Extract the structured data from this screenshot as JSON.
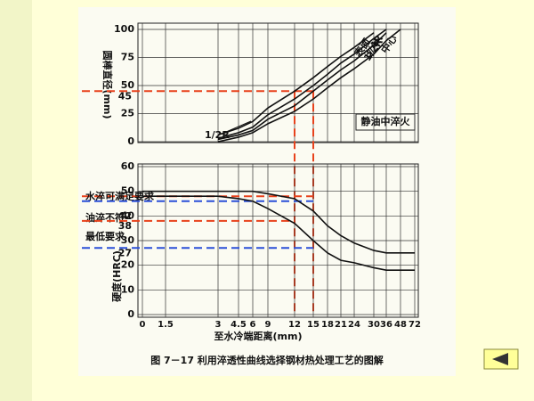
{
  "chart_data": [
    {
      "type": "line",
      "y_label": "圆棒直径(mm)",
      "annotation": "静油中淬火",
      "x": [
        3,
        4.5,
        6,
        9,
        12,
        15,
        18,
        21,
        24,
        30,
        36,
        48
      ],
      "series": [
        {
          "name": "表面",
          "color": "#111111",
          "values": [
            6,
            12,
            18,
            30,
            45,
            57,
            67,
            76,
            84,
            97,
            null,
            null
          ]
        },
        {
          "name": "3/4R",
          "color": "#111111",
          "values": [
            3,
            8,
            13,
            24,
            38,
            50,
            60,
            70,
            78,
            92,
            100,
            null
          ]
        },
        {
          "name": "1/2R",
          "color": "#111111",
          "values": [
            2,
            6,
            10,
            20,
            32,
            45,
            55,
            64,
            72,
            86,
            97,
            null
          ]
        },
        {
          "name": "中心",
          "color": "#111111",
          "values": [
            0,
            4,
            8,
            16,
            27,
            38,
            48,
            57,
            65,
            78,
            90,
            100
          ]
        }
      ],
      "ylim": [
        0,
        100
      ],
      "yticks": [
        0,
        25,
        50,
        75,
        100
      ],
      "extra_ticks": [
        45
      ],
      "hlines": [
        {
          "y": 45,
          "color": "#e8421c",
          "x_end": 15
        }
      ],
      "vlines": [
        {
          "x": 12,
          "color": "#e8421c"
        },
        {
          "x": 15,
          "color": "#e8421c"
        }
      ],
      "grid": true
    },
    {
      "type": "line",
      "y_label": "硬度(HRC)",
      "x_label": "至水冷端距离(mm)",
      "x": [
        0,
        1.5,
        3,
        4.5,
        6,
        9,
        12,
        15,
        18,
        21,
        24,
        30,
        36,
        48,
        72
      ],
      "series": [
        {
          "color": "#111111",
          "values": [
            50,
            50,
            50,
            50,
            50,
            49,
            47,
            42,
            36,
            32,
            29,
            26,
            25,
            25,
            25
          ]
        },
        {
          "color": "#111111",
          "values": [
            48,
            48,
            48,
            47,
            46,
            43,
            37,
            30,
            25,
            22,
            21,
            19,
            18,
            18,
            18
          ]
        }
      ],
      "xlim": [
        0,
        72
      ],
      "xticks": [
        0,
        1.5,
        3,
        4.5,
        6,
        9,
        12,
        15,
        18,
        21,
        24,
        30,
        36,
        48,
        72
      ],
      "ylim": [
        0,
        60
      ],
      "yticks": [
        0,
        10,
        20,
        30,
        40,
        50,
        60
      ],
      "extra_ticks": [
        42,
        38,
        27
      ],
      "hlines": [
        {
          "y": 48,
          "color": "#e8421c",
          "x_end": 15,
          "text": "水淬可满足要求"
        },
        {
          "y": 46,
          "color": "#2b4fd8",
          "x_end": 15
        },
        {
          "y": 38,
          "color": "#e8421c",
          "x_end": 12
        },
        {
          "y": 27,
          "color": "#2b4fd8",
          "x_end": 15
        }
      ],
      "annotations": [
        "油淬不符",
        "最低要求"
      ],
      "grid": true
    }
  ],
  "caption": "图 7－17  利用淬透性曲线选择钢材热处理工艺的图解"
}
